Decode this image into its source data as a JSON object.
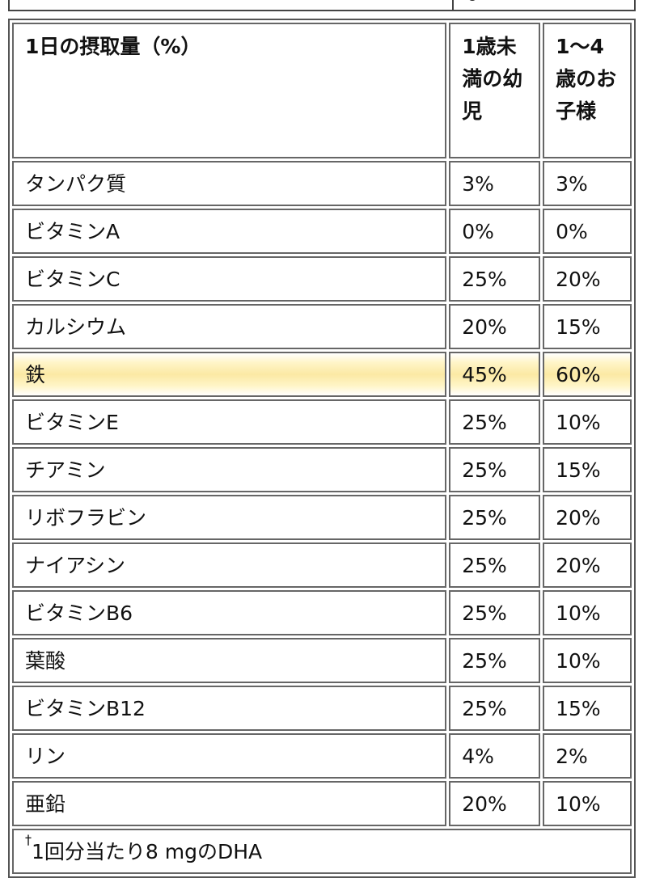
{
  "table": {
    "header": {
      "label": "1日の摂取量（%）",
      "col_infant": "1歳未満の幼児",
      "col_child": "1〜4歳のお子様"
    },
    "rows": [
      {
        "nutrient": "タンパク質",
        "infant": "3%",
        "child": "3%"
      },
      {
        "nutrient": "ビタミンA",
        "infant": "0%",
        "child": "0%"
      },
      {
        "nutrient": "ビタミンC",
        "infant": "25%",
        "child": "20%"
      },
      {
        "nutrient": "カルシウム",
        "infant": "20%",
        "child": "15%"
      },
      {
        "nutrient": "鉄",
        "infant": "45%",
        "child": "60%",
        "highlighted": true
      },
      {
        "nutrient": "ビタミンE",
        "infant": "25%",
        "child": "10%"
      },
      {
        "nutrient": "チアミン",
        "infant": "25%",
        "child": "15%"
      },
      {
        "nutrient": "リボフラビン",
        "infant": "25%",
        "child": "20%"
      },
      {
        "nutrient": "ナイアシン",
        "infant": "25%",
        "child": "20%"
      },
      {
        "nutrient": "ビタミンB6",
        "infant": "25%",
        "child": "10%"
      },
      {
        "nutrient": "葉酸",
        "infant": "25%",
        "child": "10%"
      },
      {
        "nutrient": "ビタミンB12",
        "infant": "25%",
        "child": "15%"
      },
      {
        "nutrient": "リン",
        "infant": "4%",
        "child": "2%"
      },
      {
        "nutrient": "亜鉛",
        "infant": "20%",
        "child": "10%"
      }
    ],
    "footnote": {
      "mark": "†",
      "text": "1回分当たり8 mgのDHA"
    }
  },
  "colors": {
    "highlight": "#fbe9a4",
    "border": "#666666",
    "text": "#111111"
  }
}
